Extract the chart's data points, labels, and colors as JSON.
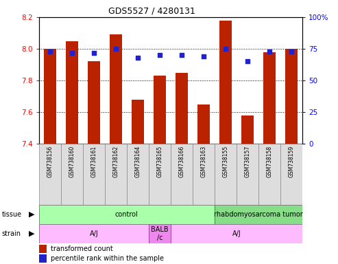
{
  "title": "GDS5527 / 4280131",
  "samples": [
    "GSM738156",
    "GSM738160",
    "GSM738161",
    "GSM738162",
    "GSM738164",
    "GSM738165",
    "GSM738166",
    "GSM738163",
    "GSM738155",
    "GSM738157",
    "GSM738158",
    "GSM738159"
  ],
  "bar_values": [
    8.0,
    8.05,
    7.92,
    8.09,
    7.68,
    7.83,
    7.85,
    7.65,
    8.18,
    7.58,
    7.98,
    8.0
  ],
  "percentile_values": [
    73,
    72,
    72,
    75,
    68,
    70,
    70,
    69,
    75,
    65,
    73,
    73
  ],
  "bar_color": "#bb2200",
  "dot_color": "#2222cc",
  "ylim_left": [
    7.4,
    8.2
  ],
  "ylim_right": [
    0,
    100
  ],
  "yticks_left": [
    7.4,
    7.6,
    7.8,
    8.0,
    8.2
  ],
  "yticks_right": [
    0,
    25,
    50,
    75,
    100
  ],
  "ytick_labels_right": [
    "0",
    "25",
    "50",
    "75",
    "100%"
  ],
  "grid_lines": [
    7.6,
    7.8,
    8.0
  ],
  "tissue_groups": [
    {
      "label": "control",
      "start": 0,
      "end": 8,
      "color": "#aaffaa"
    },
    {
      "label": "rhabdomyosarcoma tumor",
      "start": 8,
      "end": 12,
      "color": "#88dd88"
    }
  ],
  "strain_groups": [
    {
      "label": "A/J",
      "start": 0,
      "end": 5,
      "color": "#ffbbff"
    },
    {
      "label": "BALB\n/c",
      "start": 5,
      "end": 6,
      "color": "#ee88ee"
    },
    {
      "label": "A/J",
      "start": 6,
      "end": 12,
      "color": "#ffbbff"
    }
  ],
  "bar_width": 0.55,
  "title_fontsize": 9,
  "tick_fontsize": 7.5,
  "sample_fontsize": 5.5,
  "label_fontsize": 7,
  "legend_fontsize": 7
}
